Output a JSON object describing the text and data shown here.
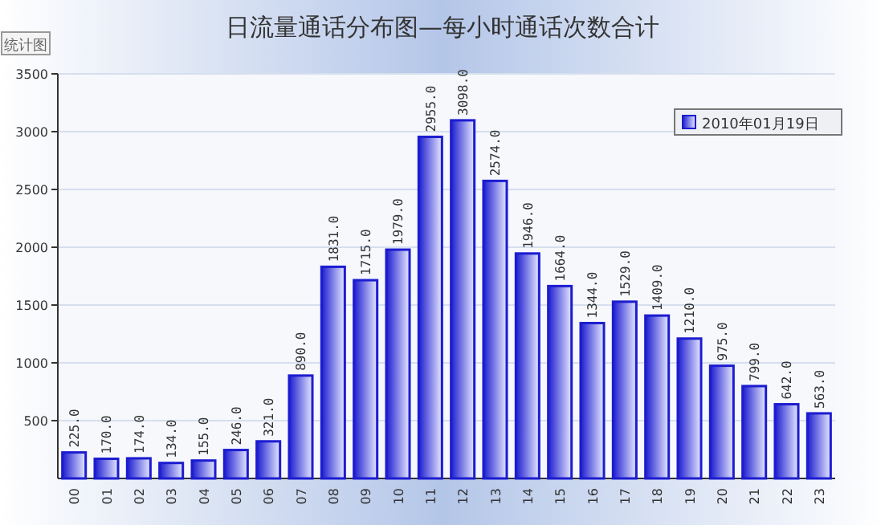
{
  "chart_data": {
    "type": "bar",
    "title": "日流量通话分布图—每小时通话次数合计",
    "annotations": [
      "统计图"
    ],
    "categories": [
      "00",
      "01",
      "02",
      "03",
      "04",
      "05",
      "06",
      "07",
      "08",
      "09",
      "10",
      "11",
      "12",
      "13",
      "14",
      "15",
      "16",
      "17",
      "18",
      "19",
      "20",
      "21",
      "22",
      "23"
    ],
    "series": [
      {
        "name": "2010年01月19日",
        "color": "#1c1cd0",
        "values": [
          225,
          170,
          174,
          134,
          155,
          246,
          321,
          890,
          1831,
          1715,
          1979,
          2955,
          3098,
          2574,
          1946,
          1664,
          1344,
          1529,
          1409,
          1210,
          975,
          799,
          642,
          563
        ],
        "value_labels": [
          "225.0",
          "170.0",
          "174.0",
          "134.0",
          "155.0",
          "246.0",
          "321.0",
          "890.0",
          "1831.0",
          "1715.0",
          "1979.0",
          "2955.0",
          "3098.0",
          "2574.0",
          "1946.0",
          "1664.0",
          "1344.0",
          "1529.0",
          "1409.0",
          "1210.0",
          "975.0",
          "799.0",
          "642.0",
          "563.0"
        ]
      }
    ],
    "ylim": [
      0,
      3500
    ],
    "yticks": [
      500,
      1000,
      1500,
      2000,
      2500,
      3000,
      3500
    ],
    "grid": "y",
    "legend": "top right"
  }
}
